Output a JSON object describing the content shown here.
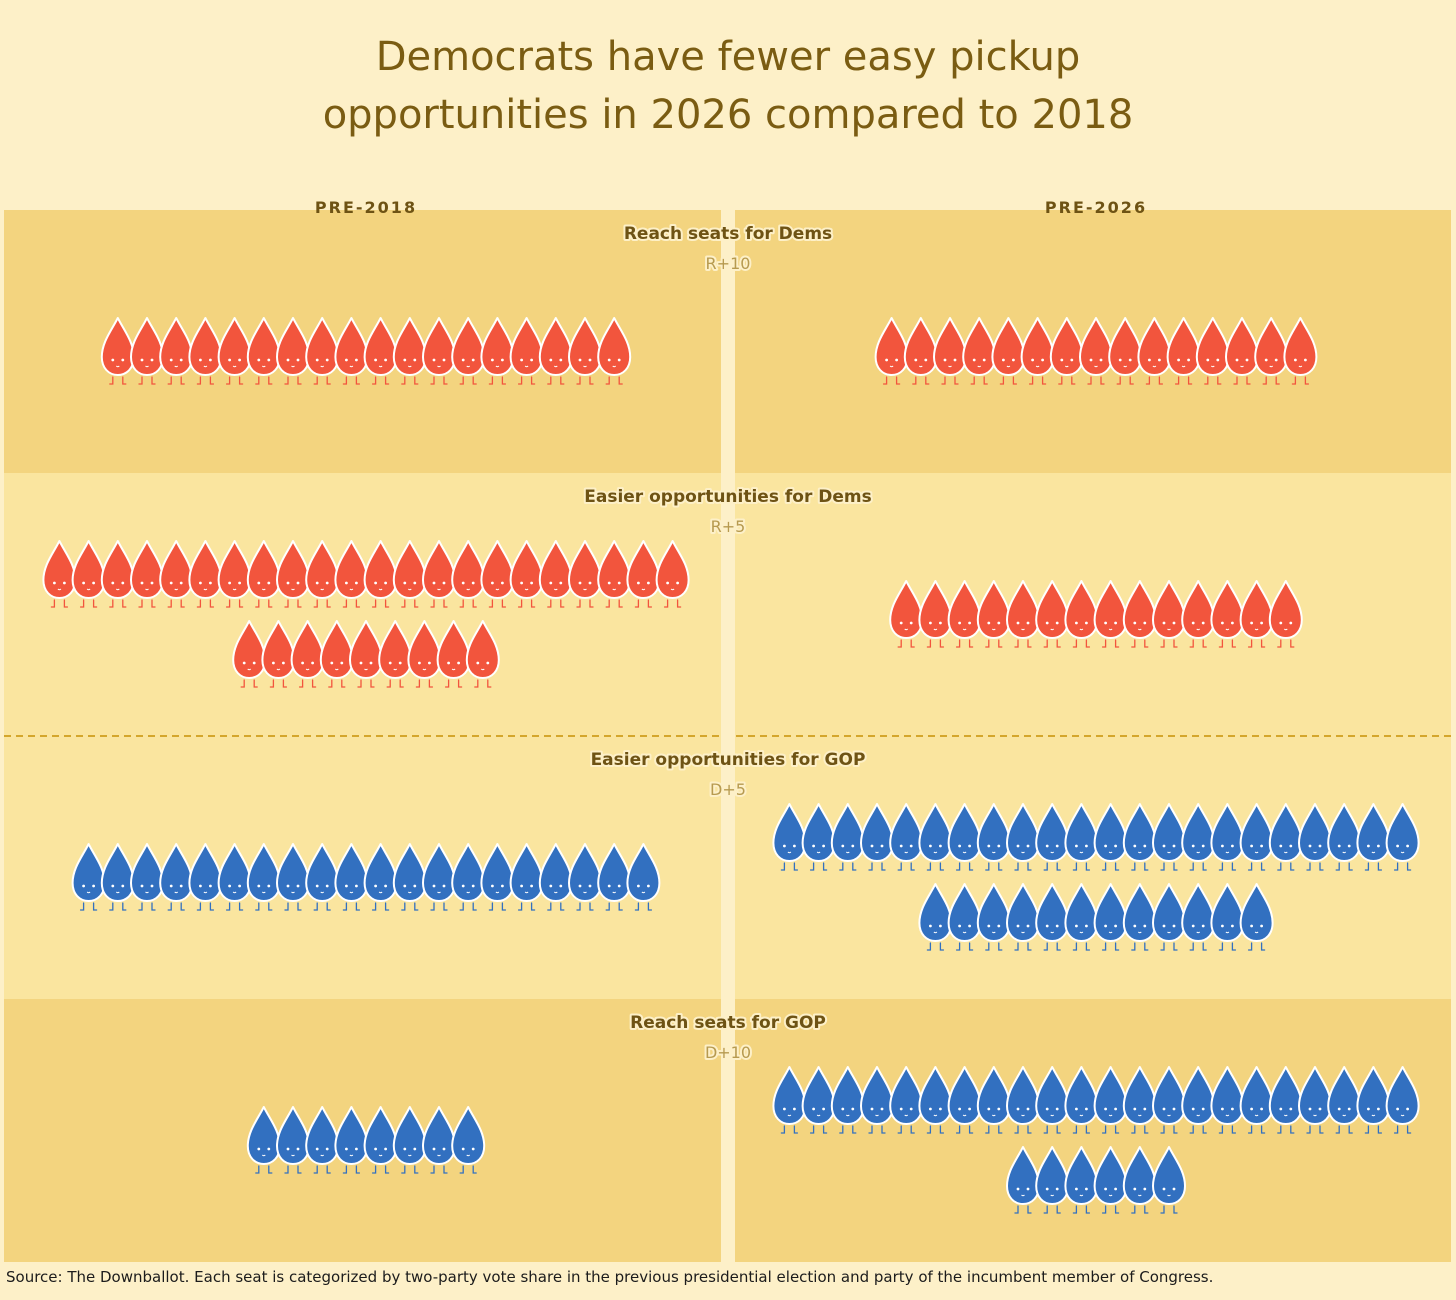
{
  "chart_data": {
    "type": "pictogram",
    "title": "Democrats have fewer easy pickup\nopportunities in 2026 compared to 2018",
    "columns": [
      "PRE-2018",
      "PRE-2026"
    ],
    "unit": "seat",
    "bands": [
      {
        "label": "Reach seats for Dems",
        "sublabel": "R+10",
        "party": "R",
        "values": [
          18,
          15
        ]
      },
      {
        "label": "Easier opportunities for Dems",
        "sublabel": "R+5",
        "party": "R",
        "values": [
          31,
          14
        ]
      },
      {
        "label": "Easier opportunities for GOP",
        "sublabel": "D+5",
        "party": "D",
        "values": [
          20,
          34
        ]
      },
      {
        "label": "Reach seats for GOP",
        "sublabel": "D+10",
        "party": "D",
        "values": [
          8,
          28
        ]
      }
    ],
    "colors": {
      "R": "#f2553d",
      "D": "#3270c0",
      "band_dark": "#f3d47f",
      "band_light": "#fae59f",
      "divider": "#d4a62c"
    }
  },
  "source": "Source: The Downballot. Each seat is categorized by two-party vote share in the previous presidential election and party of the incumbent member of Congress."
}
